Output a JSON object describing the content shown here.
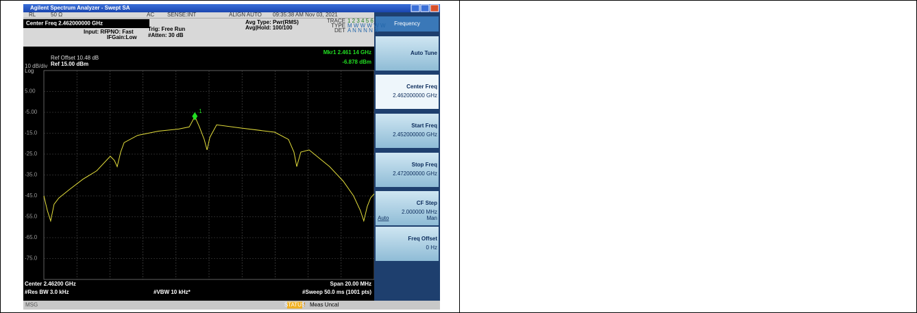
{
  "window": {
    "title": "Agilent Spectrum Analyzer - Swept SA"
  },
  "status_row": [
    "RL",
    "50 Ω",
    "AC",
    "SENSE:INT",
    "ALIGN AUTO",
    "09:35:38 AM Nov 03, 2021"
  ],
  "header": {
    "center_freq": "Center Freq 2.462000000 GHz",
    "input": "Input: RF",
    "pno": "PNO: Fast",
    "ifgain": "IFGain:Low",
    "trig": "Trig: Free Run",
    "atten": "#Atten: 30 dB",
    "avg_type": "Avg Type: Pwr(RMS)",
    "avg_hold": "Avg|Hold: 100/100",
    "trace_labels": [
      "TRACE",
      "TYPE",
      "DET"
    ],
    "trace_rows": [
      "1 2 3 4 5 6",
      "M W W W W W",
      "A N N N N N"
    ]
  },
  "plot": {
    "ref_offset": "Ref Offset 10.48 dB",
    "scale": "10 dB/div",
    "ref": "Ref 15.00 dBm",
    "log": "Log",
    "marker_readout": "Mkr1 2.461 14 GHz",
    "marker_value": "-6.878 dBm",
    "marker": {
      "label": "1",
      "x": 2.46114,
      "value": -6.878
    },
    "xlim": [
      2.452,
      2.472
    ],
    "ylim": [
      -85,
      15
    ],
    "yticks": [
      {
        "value": 5,
        "label": "5.00"
      },
      {
        "value": -5,
        "label": "-5.00"
      },
      {
        "value": -15,
        "label": "-15.0"
      },
      {
        "value": -25,
        "label": "-25.0"
      },
      {
        "value": -35,
        "label": "-35.0"
      },
      {
        "value": -45,
        "label": "-45.0"
      },
      {
        "value": -55,
        "label": "-55.0"
      },
      {
        "value": -65,
        "label": "-65.0"
      },
      {
        "value": -75,
        "label": "-75.0"
      }
    ],
    "trace": {
      "color": "#e6e03c",
      "x": [
        2.452,
        2.45221,
        2.45241,
        2.45262,
        2.45291,
        2.45354,
        2.45437,
        2.4552,
        2.45602,
        2.45627,
        2.45644,
        2.45665,
        2.45686,
        2.45768,
        2.45893,
        2.46017,
        2.4608,
        2.46114,
        2.46142,
        2.46171,
        2.46188,
        2.46205,
        2.46246,
        2.46391,
        2.46598,
        2.46681,
        2.46714,
        2.46731,
        2.46756,
        2.46806,
        2.4693,
        2.47013,
        2.47075,
        2.47116,
        2.47137,
        2.47158,
        2.47178,
        2.472
      ],
      "values": [
        -45,
        -52,
        -57,
        -49,
        -46,
        -42,
        -37,
        -33,
        -26,
        -28,
        -31,
        -24,
        -19.5,
        -16,
        -14,
        -13,
        -12,
        -7,
        -12,
        -18,
        -23,
        -17,
        -11,
        -12.5,
        -14.5,
        -18,
        -24,
        -31,
        -24,
        -23,
        -31,
        -38,
        -45,
        -52,
        -57,
        -50,
        -46,
        -44
      ]
    }
  },
  "footer": {
    "center": "Center 2.46200 GHz",
    "span": "Span 20.00 MHz",
    "rbw": "#Res BW 3.0 kHz",
    "vbw": "#VBW 10 kHz*",
    "sweep": "#Sweep 50.0 ms (1001 pts)"
  },
  "softkeys": {
    "title": "Frequency",
    "keys": [
      {
        "label": "Auto Tune"
      },
      {
        "label": "Center Freq",
        "value": "2.462000000 GHz"
      },
      {
        "label": "Start Freq",
        "value": "2.452000000 GHz"
      },
      {
        "label": "Stop Freq",
        "value": "2.472000000 GHz"
      },
      {
        "label": "CF Step",
        "value": "2.000000 MHz",
        "options": [
          "Auto",
          "Man"
        ]
      },
      {
        "label": "Freq Offset",
        "value": "0 Hz"
      }
    ]
  },
  "status_bar": {
    "msg": "MSG",
    "status": "STATUS",
    "text": "Meas Uncal"
  }
}
